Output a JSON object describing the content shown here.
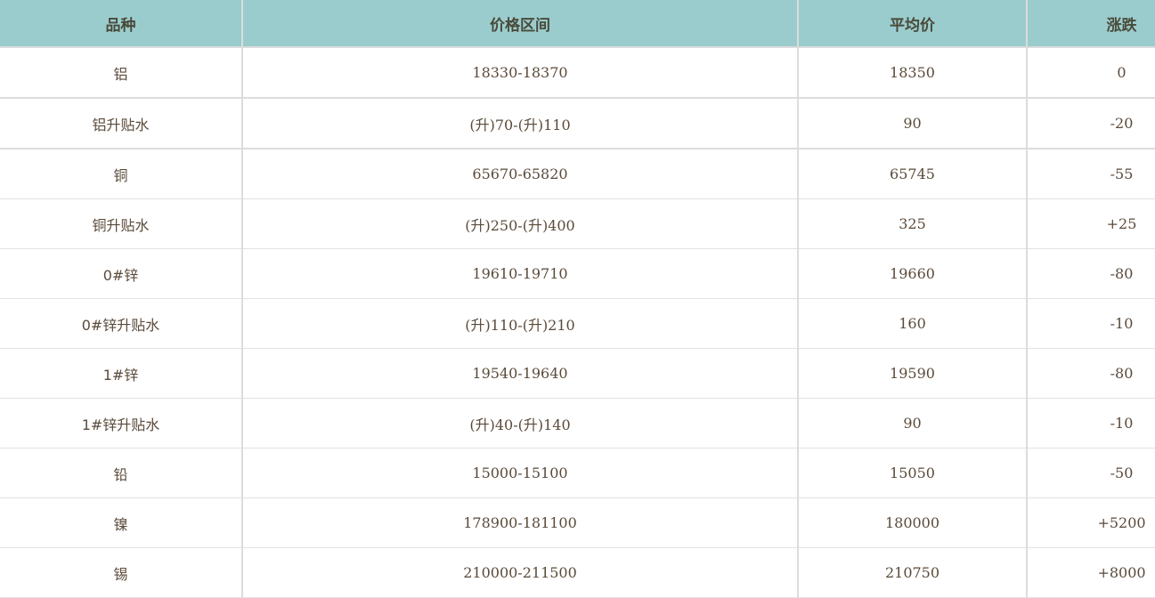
{
  "headers": [
    "品种",
    "价格区间",
    "平均价",
    "涨跌"
  ],
  "rows": [
    [
      "铝",
      "18330-18370",
      "18350",
      "0"
    ],
    [
      "铝升贴水",
      "(升)70-(升)110",
      "90",
      "-20"
    ],
    [
      "铜",
      "65670-65820",
      "65745",
      "-55"
    ],
    [
      "铜升贴水",
      "(升)250-(升)400",
      "325",
      "+25"
    ],
    [
      "0#锌",
      "19610-19710",
      "19660",
      "-80"
    ],
    [
      "0#锌升贴水",
      "(升)110-(升)210",
      "160",
      "-10"
    ],
    [
      "1#锌",
      "19540-19640",
      "19590",
      "-80"
    ],
    [
      "1#锌升贴水",
      "(升)40-(升)140",
      "90",
      "-10"
    ],
    [
      "铅",
      "15000-15100",
      "15050",
      "-50"
    ],
    [
      "镍",
      "178900-181100",
      "180000",
      "+5200"
    ],
    [
      "锡",
      "210000-211500",
      "210750",
      "+8000"
    ]
  ]
}
